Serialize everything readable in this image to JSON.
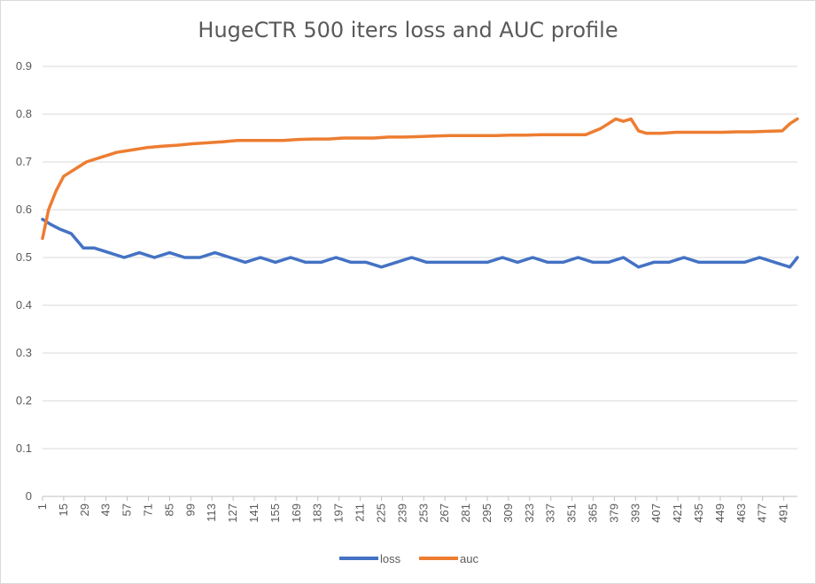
{
  "chart_data": {
    "type": "line",
    "title": "HugeCTR 500 iters loss and AUC profile",
    "xlabel": "",
    "ylabel": "",
    "ylim": [
      0,
      0.9
    ],
    "yticks": [
      "0",
      "0.1",
      "0.2",
      "0.3",
      "0.4",
      "0.5",
      "0.6",
      "0.7",
      "0.8",
      "0.9"
    ],
    "x_tick_labels": [
      "1",
      "15",
      "29",
      "43",
      "57",
      "71",
      "85",
      "99",
      "113",
      "127",
      "141",
      "155",
      "169",
      "183",
      "197",
      "211",
      "225",
      "239",
      "253",
      "267",
      "281",
      "295",
      "309",
      "323",
      "337",
      "351",
      "365",
      "379",
      "393",
      "407",
      "421",
      "435",
      "449",
      "463",
      "477",
      "491"
    ],
    "x_range": [
      1,
      500
    ],
    "grid": "horizontal",
    "legend_position": "bottom",
    "series": [
      {
        "name": "loss",
        "color": "#4472C4",
        "x": [
          1,
          6,
          12,
          20,
          28,
          35,
          45,
          55,
          65,
          75,
          85,
          95,
          105,
          115,
          125,
          135,
          145,
          155,
          165,
          175,
          185,
          195,
          205,
          215,
          225,
          235,
          245,
          255,
          265,
          275,
          285,
          295,
          305,
          315,
          325,
          335,
          345,
          355,
          365,
          375,
          385,
          395,
          405,
          415,
          425,
          435,
          445,
          455,
          465,
          475,
          485,
          495,
          500
        ],
        "values": [
          0.58,
          0.57,
          0.56,
          0.55,
          0.52,
          0.52,
          0.51,
          0.5,
          0.51,
          0.5,
          0.51,
          0.5,
          0.5,
          0.51,
          0.5,
          0.49,
          0.5,
          0.49,
          0.5,
          0.49,
          0.49,
          0.5,
          0.49,
          0.49,
          0.48,
          0.49,
          0.5,
          0.49,
          0.49,
          0.49,
          0.49,
          0.49,
          0.5,
          0.49,
          0.5,
          0.49,
          0.49,
          0.5,
          0.49,
          0.49,
          0.5,
          0.48,
          0.49,
          0.49,
          0.5,
          0.49,
          0.49,
          0.49,
          0.49,
          0.5,
          0.49,
          0.48,
          0.5
        ]
      },
      {
        "name": "auc",
        "color": "#ED7D31",
        "x": [
          1,
          5,
          10,
          15,
          20,
          25,
          30,
          40,
          50,
          60,
          70,
          80,
          90,
          100,
          110,
          120,
          130,
          140,
          150,
          160,
          170,
          180,
          190,
          200,
          210,
          220,
          230,
          240,
          250,
          260,
          270,
          280,
          290,
          300,
          310,
          320,
          330,
          340,
          350,
          360,
          370,
          375,
          380,
          385,
          390,
          395,
          400,
          410,
          420,
          430,
          440,
          450,
          460,
          470,
          480,
          490,
          495,
          500
        ],
        "values": [
          0.54,
          0.6,
          0.64,
          0.67,
          0.68,
          0.69,
          0.7,
          0.71,
          0.72,
          0.725,
          0.73,
          0.733,
          0.735,
          0.738,
          0.74,
          0.742,
          0.745,
          0.745,
          0.745,
          0.745,
          0.747,
          0.748,
          0.748,
          0.75,
          0.75,
          0.75,
          0.752,
          0.752,
          0.753,
          0.754,
          0.755,
          0.755,
          0.755,
          0.755,
          0.756,
          0.756,
          0.757,
          0.757,
          0.757,
          0.757,
          0.77,
          0.78,
          0.79,
          0.785,
          0.79,
          0.765,
          0.76,
          0.76,
          0.762,
          0.762,
          0.762,
          0.762,
          0.763,
          0.763,
          0.764,
          0.765,
          0.78,
          0.79
        ]
      }
    ]
  }
}
